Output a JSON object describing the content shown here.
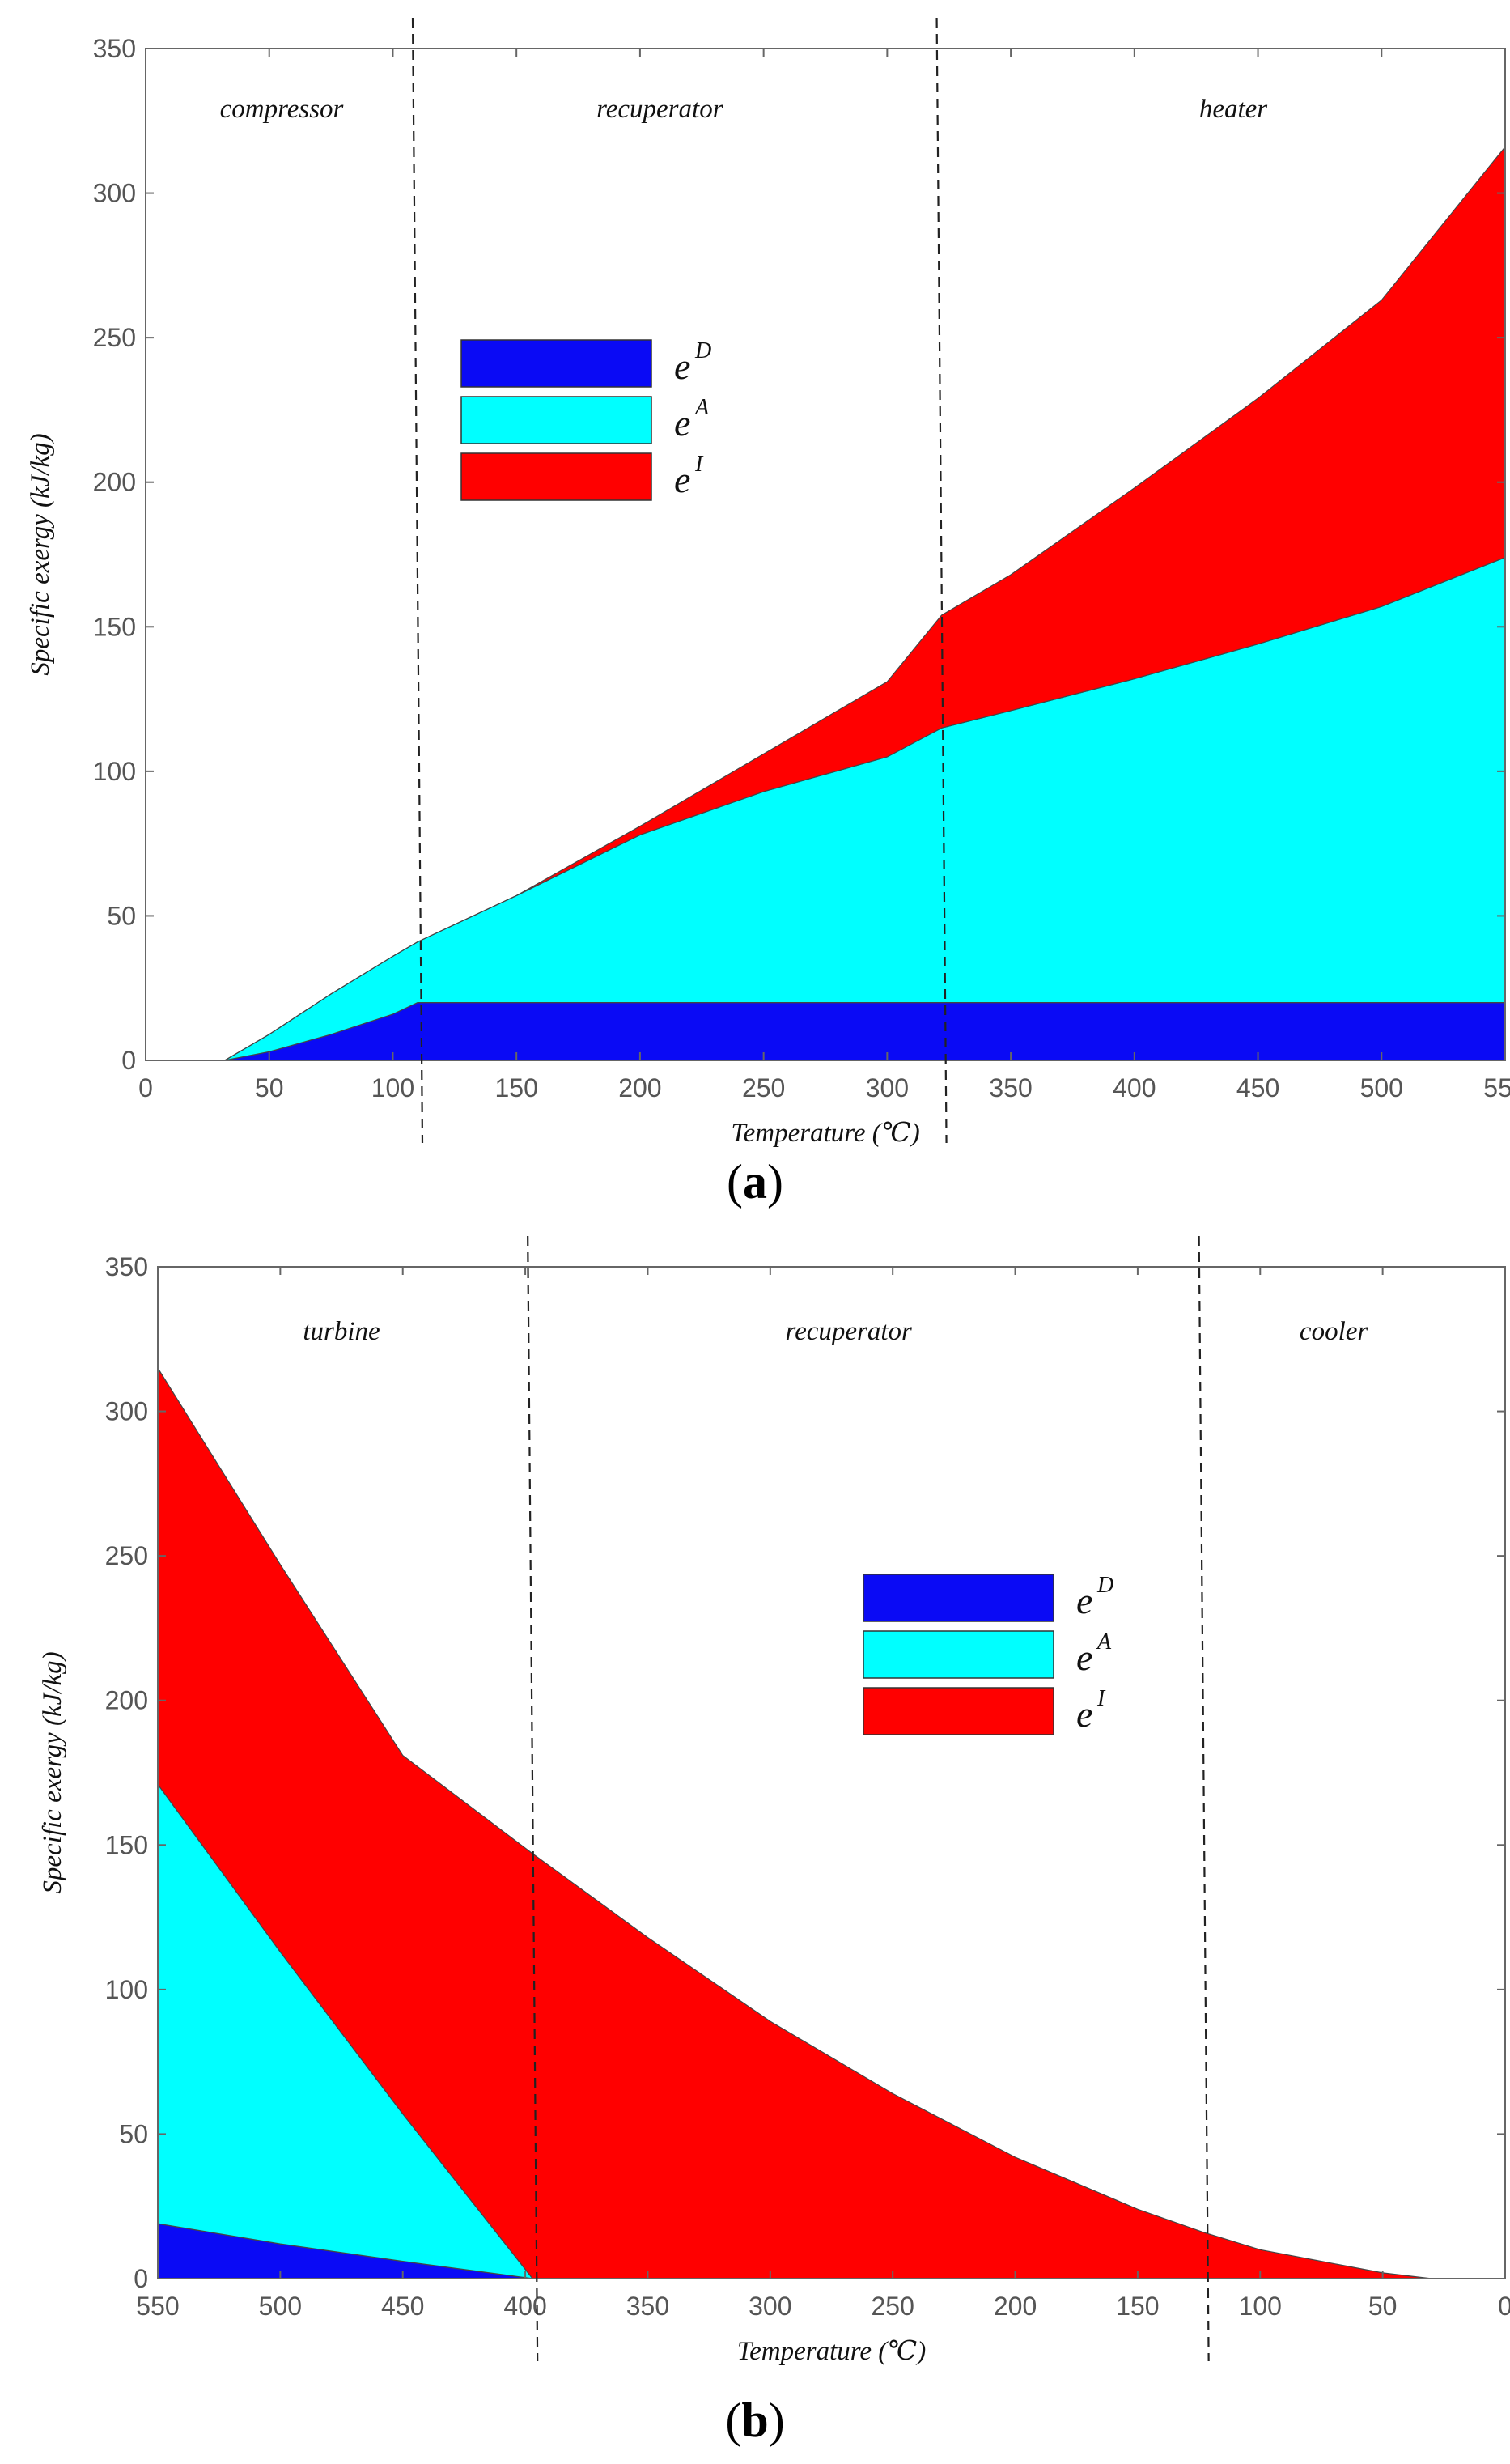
{
  "colors": {
    "eD": "#0a0af5",
    "eA": "#00ffff",
    "eI": "#ff0000",
    "background": "#ffffff",
    "axis": "#666666",
    "boundary": "#222222"
  },
  "chart_data": [
    {
      "id": "a",
      "type": "area",
      "stacked": true,
      "panel_label": "a",
      "xlabel": "Temperature (℃)",
      "ylabel": "Specific exergy (kJ/kg)",
      "xlim": [
        0,
        550
      ],
      "ylim": [
        0,
        350
      ],
      "x_reversed": false,
      "xticks": [
        0,
        50,
        100,
        150,
        200,
        250,
        300,
        350,
        400,
        450,
        500,
        550
      ],
      "yticks": [
        0,
        50,
        100,
        150,
        200,
        250,
        300,
        350
      ],
      "legend_position": "upper-left",
      "legend": [
        {
          "key": "eD",
          "base": "e",
          "sup": "D"
        },
        {
          "key": "eA",
          "base": "e",
          "sup": "A"
        },
        {
          "key": "eI",
          "base": "e",
          "sup": "I"
        }
      ],
      "boundaries": [
        110,
        322
      ],
      "regions": [
        {
          "label": "compressor",
          "x": 55
        },
        {
          "label": "recuperator",
          "x": 208
        },
        {
          "label": "heater",
          "x": 440
        }
      ],
      "x": [
        32,
        50,
        75,
        100,
        110,
        150,
        200,
        250,
        300,
        322,
        350,
        400,
        450,
        500,
        550
      ],
      "series": [
        {
          "key": "eD",
          "name": "e^D",
          "values": [
            0,
            3,
            9,
            16,
            20,
            20,
            20,
            20,
            20,
            20,
            20,
            20,
            20,
            20,
            20
          ]
        },
        {
          "key": "eA",
          "name": "e^A",
          "values": [
            0,
            6,
            14,
            20,
            21,
            37,
            58,
            73,
            85,
            95,
            101,
            112,
            124,
            137,
            154
          ]
        },
        {
          "key": "eI",
          "name": "e^I",
          "values": [
            0,
            0,
            0,
            0,
            0,
            0,
            3,
            13,
            26,
            39,
            47,
            66,
            85,
            106,
            142
          ]
        }
      ]
    },
    {
      "id": "b",
      "type": "area",
      "stacked": true,
      "panel_label": "b",
      "xlabel": "Temperature (℃)",
      "ylabel": "Specific exergy (kJ/kg)",
      "xlim": [
        550,
        0
      ],
      "ylim": [
        0,
        350
      ],
      "x_reversed": true,
      "xticks": [
        550,
        500,
        450,
        400,
        350,
        300,
        250,
        200,
        150,
        100,
        50,
        0
      ],
      "yticks": [
        0,
        50,
        100,
        150,
        200,
        250,
        300,
        350
      ],
      "legend_position": "center-right",
      "legend": [
        {
          "key": "eD",
          "base": "e",
          "sup": "D"
        },
        {
          "key": "eA",
          "base": "e",
          "sup": "A"
        },
        {
          "key": "eI",
          "base": "e",
          "sup": "I"
        }
      ],
      "boundaries": [
        397,
        123
      ],
      "regions": [
        {
          "label": "turbine",
          "x": 475
        },
        {
          "label": "recuperator",
          "x": 268
        },
        {
          "label": "cooler",
          "x": 70
        }
      ],
      "x": [
        550,
        500,
        450,
        397,
        350,
        300,
        250,
        200,
        150,
        123,
        100,
        50,
        30
      ],
      "series": [
        {
          "key": "eD",
          "name": "e^D",
          "values": [
            19,
            12,
            6,
            0,
            0,
            0,
            0,
            0,
            0,
            0,
            0,
            0,
            0
          ]
        },
        {
          "key": "eA",
          "name": "e^A",
          "values": [
            152,
            101,
            51,
            0,
            0,
            0,
            0,
            0,
            0,
            0,
            0,
            0,
            0
          ]
        },
        {
          "key": "eI",
          "name": "e^I",
          "values": [
            144,
            134,
            124,
            147,
            118,
            89,
            64,
            42,
            24,
            16,
            10,
            2,
            0
          ]
        }
      ]
    }
  ]
}
